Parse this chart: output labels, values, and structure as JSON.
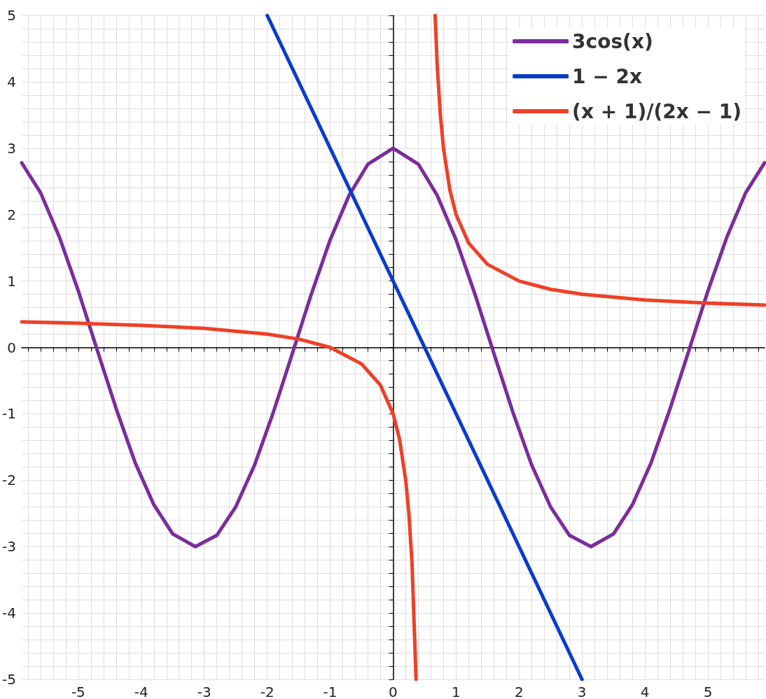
{
  "chart_data": {
    "type": "line",
    "xlim": [
      -5.9,
      5.9
    ],
    "ylim": [
      -5,
      5
    ],
    "xticks": [
      -5,
      -4,
      -3,
      -2,
      -1,
      0,
      1,
      2,
      3,
      4,
      5
    ],
    "yticks": [
      -5,
      -4,
      -3,
      -2,
      -1,
      0,
      1,
      2,
      3,
      4,
      5
    ],
    "grid": true,
    "legend": "top right",
    "marker": "none",
    "line_style": "solid",
    "series": [
      {
        "name": "3cos(x)",
        "color": "#7b2d9b",
        "x": [
          -5.9,
          -5.6,
          -5.3,
          -5.0,
          -4.7,
          -4.4,
          -4.1,
          -3.8,
          -3.5,
          -3.1416,
          -2.8,
          -2.5,
          -2.2,
          -1.9,
          -1.6,
          -1.3,
          -1.0,
          -0.7,
          -0.4,
          0,
          0.4,
          0.7,
          1.0,
          1.3,
          1.6,
          1.9,
          2.2,
          2.5,
          2.8,
          3.1416,
          3.5,
          3.8,
          4.1,
          4.4,
          4.7,
          5.0,
          5.3,
          5.6,
          5.9
        ],
        "values": [
          2.78,
          2.33,
          1.66,
          0.85,
          -0.04,
          -0.92,
          -1.73,
          -2.37,
          -2.81,
          -3.0,
          -2.83,
          -2.4,
          -1.77,
          -0.97,
          -0.09,
          0.8,
          1.62,
          2.29,
          2.76,
          3.0,
          2.76,
          2.29,
          1.62,
          0.8,
          -0.09,
          -0.97,
          -1.77,
          -2.4,
          -2.83,
          -3.0,
          -2.81,
          -2.37,
          -1.73,
          -0.92,
          -0.04,
          0.85,
          1.66,
          2.33,
          2.78
        ]
      },
      {
        "name": "1 − 2x",
        "color": "#0a3ccc",
        "x": [
          -2,
          3
        ],
        "values": [
          5,
          -5
        ]
      },
      {
        "name": "(x + 1)/(2x − 1)",
        "color": "#ee4027",
        "x": [
          -5.9,
          -5,
          -4,
          -3,
          -2,
          -1.5,
          -1,
          -0.5,
          -0.2,
          0,
          0.1,
          0.2,
          0.25,
          0.3,
          0.364,
          0.5,
          0.667,
          0.7,
          0.75,
          0.8,
          0.9,
          1,
          1.2,
          1.5,
          2,
          2.5,
          3,
          4,
          5,
          5.9
        ],
        "values": [
          0.385,
          0.364,
          0.333,
          0.286,
          0.2,
          0.125,
          0,
          -0.25,
          -0.571,
          -1,
          -1.375,
          -2,
          -2.5,
          -3.25,
          -5,
          null,
          5,
          4.25,
          3.5,
          3,
          2.375,
          2,
          1.571,
          1.25,
          1,
          0.875,
          0.8,
          0.714,
          0.667,
          0.637
        ]
      }
    ]
  }
}
